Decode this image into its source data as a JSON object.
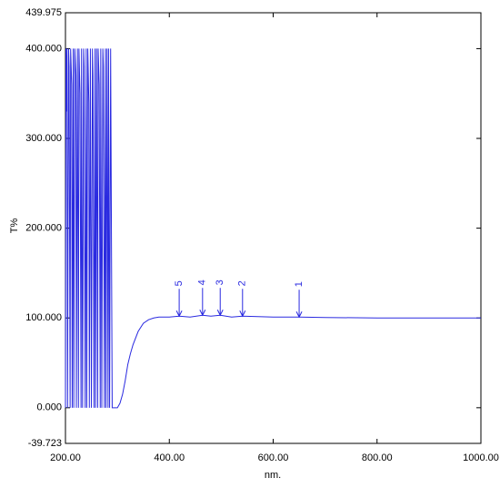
{
  "chart_data": {
    "type": "line",
    "x_label": "nm.",
    "y_label": "T%",
    "color": "#2a2ae0",
    "xlim": [
      200,
      1000
    ],
    "ylim": [
      -39.723,
      439.975
    ],
    "xticks": [
      {
        "value": 200,
        "label": "200.00"
      },
      {
        "value": 400,
        "label": "400.00"
      },
      {
        "value": 600,
        "label": "600.00"
      },
      {
        "value": 800,
        "label": "800.00"
      },
      {
        "value": 1000,
        "label": "1000.00"
      }
    ],
    "yticks": [
      {
        "value": -39.723,
        "label": "-39.723"
      },
      {
        "value": 0,
        "label": "0.000"
      },
      {
        "value": 100,
        "label": "100.000"
      },
      {
        "value": 200,
        "label": "200.000"
      },
      {
        "value": 300,
        "label": "300.000"
      },
      {
        "value": 400,
        "label": "400.000"
      },
      {
        "value": 439.975,
        "label": "439.975"
      }
    ],
    "x": [
      200,
      201,
      202,
      203,
      204,
      206,
      207,
      209,
      210,
      212,
      213,
      215,
      216,
      218,
      220,
      221,
      223,
      225,
      226,
      228,
      230,
      231,
      233,
      235,
      236,
      238,
      240,
      241,
      243,
      245,
      246,
      248,
      250,
      252,
      253,
      255,
      257,
      258,
      260,
      262,
      263,
      265,
      267,
      268,
      270,
      272,
      273,
      275,
      277,
      278,
      280,
      282,
      283,
      285,
      287,
      290,
      295,
      300,
      305,
      310,
      315,
      320,
      325,
      330,
      340,
      350,
      360,
      370,
      380,
      400,
      419,
      440,
      464,
      480,
      498,
      520,
      541,
      600,
      650,
      700,
      800,
      900,
      1000
    ],
    "values": [
      0,
      400,
      330,
      400,
      0,
      400,
      380,
      0,
      400,
      360,
      0,
      400,
      0,
      400,
      370,
      0,
      400,
      0,
      400,
      350,
      0,
      400,
      0,
      400,
      380,
      0,
      400,
      0,
      400,
      340,
      0,
      400,
      0,
      400,
      370,
      0,
      400,
      0,
      400,
      0,
      400,
      360,
      0,
      400,
      0,
      400,
      380,
      0,
      400,
      0,
      400,
      0,
      400,
      0,
      400,
      0,
      0,
      0,
      5,
      15,
      30,
      48,
      60,
      70,
      85,
      94,
      98,
      100,
      101,
      101,
      102,
      101,
      103,
      102,
      103,
      101,
      102,
      101,
      101,
      100.5,
      100,
      100,
      100
    ],
    "peaks": [
      {
        "label": "1",
        "x": 650,
        "y": 101
      },
      {
        "label": "2",
        "x": 541,
        "y": 102
      },
      {
        "label": "3",
        "x": 498,
        "y": 103
      },
      {
        "label": "4",
        "x": 464,
        "y": 103
      },
      {
        "label": "5",
        "x": 419,
        "y": 102
      }
    ]
  }
}
